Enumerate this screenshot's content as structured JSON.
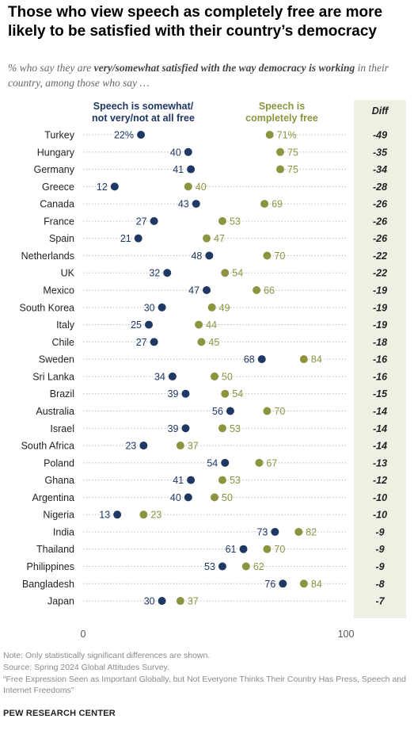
{
  "header": {
    "title": "Those who view speech as completely free are more likely to be satisfied with their country’s democracy",
    "subtitle_pre": "% who say they are ",
    "subtitle_em": "very/somewhat satisfied with the way democracy is working",
    "subtitle_post": " in their country, among those who say …"
  },
  "footer": {
    "note": "Note: Only statistically significant differences are shown.",
    "source": "Source: Spring 2024 Global Attitudes Survey.",
    "report": "“Free Expression Seen as Important Globally, but Not Everyone Thinks Their Country Has Press, Speech and Internet Freedoms”",
    "org": "PEW RESEARCH CENTER"
  },
  "colors": {
    "not_free": "#1f3864",
    "free": "#8c9440",
    "diff_bg": "#f0efe3",
    "dots": "#b5b5b5"
  },
  "chart_data": {
    "type": "dot",
    "xlim": [
      0,
      100
    ],
    "x_ticks": [
      "0",
      "100"
    ],
    "diff_header": "Diff",
    "series": [
      {
        "name": "Speech is somewhat/ not very/not at all free",
        "label_lines": [
          "Speech is somewhat/",
          "not very/not at all free"
        ]
      },
      {
        "name": "Speech is completely free",
        "label_lines": [
          "Speech is",
          "completely free"
        ]
      }
    ],
    "rows": [
      {
        "country": "Turkey",
        "not_free": 22,
        "free": 71,
        "diff": "-49",
        "not_free_label": "22%",
        "free_label": "71%"
      },
      {
        "country": "Hungary",
        "not_free": 40,
        "free": 75,
        "diff": "-35",
        "not_free_label": "40",
        "free_label": "75"
      },
      {
        "country": "Germany",
        "not_free": 41,
        "free": 75,
        "diff": "-34",
        "not_free_label": "41",
        "free_label": "75"
      },
      {
        "country": "Greece",
        "not_free": 12,
        "free": 40,
        "diff": "-28",
        "not_free_label": "12",
        "free_label": "40"
      },
      {
        "country": "Canada",
        "not_free": 43,
        "free": 69,
        "diff": "-26",
        "not_free_label": "43",
        "free_label": "69"
      },
      {
        "country": "France",
        "not_free": 27,
        "free": 53,
        "diff": "-26",
        "not_free_label": "27",
        "free_label": "53"
      },
      {
        "country": "Spain",
        "not_free": 21,
        "free": 47,
        "diff": "-26",
        "not_free_label": "21",
        "free_label": "47"
      },
      {
        "country": "Netherlands",
        "not_free": 48,
        "free": 70,
        "diff": "-22",
        "not_free_label": "48",
        "free_label": "70"
      },
      {
        "country": "UK",
        "not_free": 32,
        "free": 54,
        "diff": "-22",
        "not_free_label": "32",
        "free_label": "54"
      },
      {
        "country": "Mexico",
        "not_free": 47,
        "free": 66,
        "diff": "-19",
        "not_free_label": "47",
        "free_label": "66"
      },
      {
        "country": "South Korea",
        "not_free": 30,
        "free": 49,
        "diff": "-19",
        "not_free_label": "30",
        "free_label": "49"
      },
      {
        "country": "Italy",
        "not_free": 25,
        "free": 44,
        "diff": "-19",
        "not_free_label": "25",
        "free_label": "44"
      },
      {
        "country": "Chile",
        "not_free": 27,
        "free": 45,
        "diff": "-18",
        "not_free_label": "27",
        "free_label": "45"
      },
      {
        "country": "Sweden",
        "not_free": 68,
        "free": 84,
        "diff": "-16",
        "not_free_label": "68",
        "free_label": "84"
      },
      {
        "country": "Sri Lanka",
        "not_free": 34,
        "free": 50,
        "diff": "-16",
        "not_free_label": "34",
        "free_label": "50"
      },
      {
        "country": "Brazil",
        "not_free": 39,
        "free": 54,
        "diff": "-15",
        "not_free_label": "39",
        "free_label": "54"
      },
      {
        "country": "Australia",
        "not_free": 56,
        "free": 70,
        "diff": "-14",
        "not_free_label": "56",
        "free_label": "70"
      },
      {
        "country": "Israel",
        "not_free": 39,
        "free": 53,
        "diff": "-14",
        "not_free_label": "39",
        "free_label": "53"
      },
      {
        "country": "South Africa",
        "not_free": 23,
        "free": 37,
        "diff": "-14",
        "not_free_label": "23",
        "free_label": "37"
      },
      {
        "country": "Poland",
        "not_free": 54,
        "free": 67,
        "diff": "-13",
        "not_free_label": "54",
        "free_label": "67"
      },
      {
        "country": "Ghana",
        "not_free": 41,
        "free": 53,
        "diff": "-12",
        "not_free_label": "41",
        "free_label": "53"
      },
      {
        "country": "Argentina",
        "not_free": 40,
        "free": 50,
        "diff": "-10",
        "not_free_label": "40",
        "free_label": "50"
      },
      {
        "country": "Nigeria",
        "not_free": 13,
        "free": 23,
        "diff": "-10",
        "not_free_label": "13",
        "free_label": "23"
      },
      {
        "country": "India",
        "not_free": 73,
        "free": 82,
        "diff": "-9",
        "not_free_label": "73",
        "free_label": "82"
      },
      {
        "country": "Thailand",
        "not_free": 61,
        "free": 70,
        "diff": "-9",
        "not_free_label": "61",
        "free_label": "70"
      },
      {
        "country": "Philippines",
        "not_free": 53,
        "free": 62,
        "diff": "-9",
        "not_free_label": "53",
        "free_label": "62"
      },
      {
        "country": "Bangladesh",
        "not_free": 76,
        "free": 84,
        "diff": "-8",
        "not_free_label": "76",
        "free_label": "84"
      },
      {
        "country": "Japan",
        "not_free": 30,
        "free": 37,
        "diff": "-7",
        "not_free_label": "30",
        "free_label": "37"
      }
    ]
  }
}
